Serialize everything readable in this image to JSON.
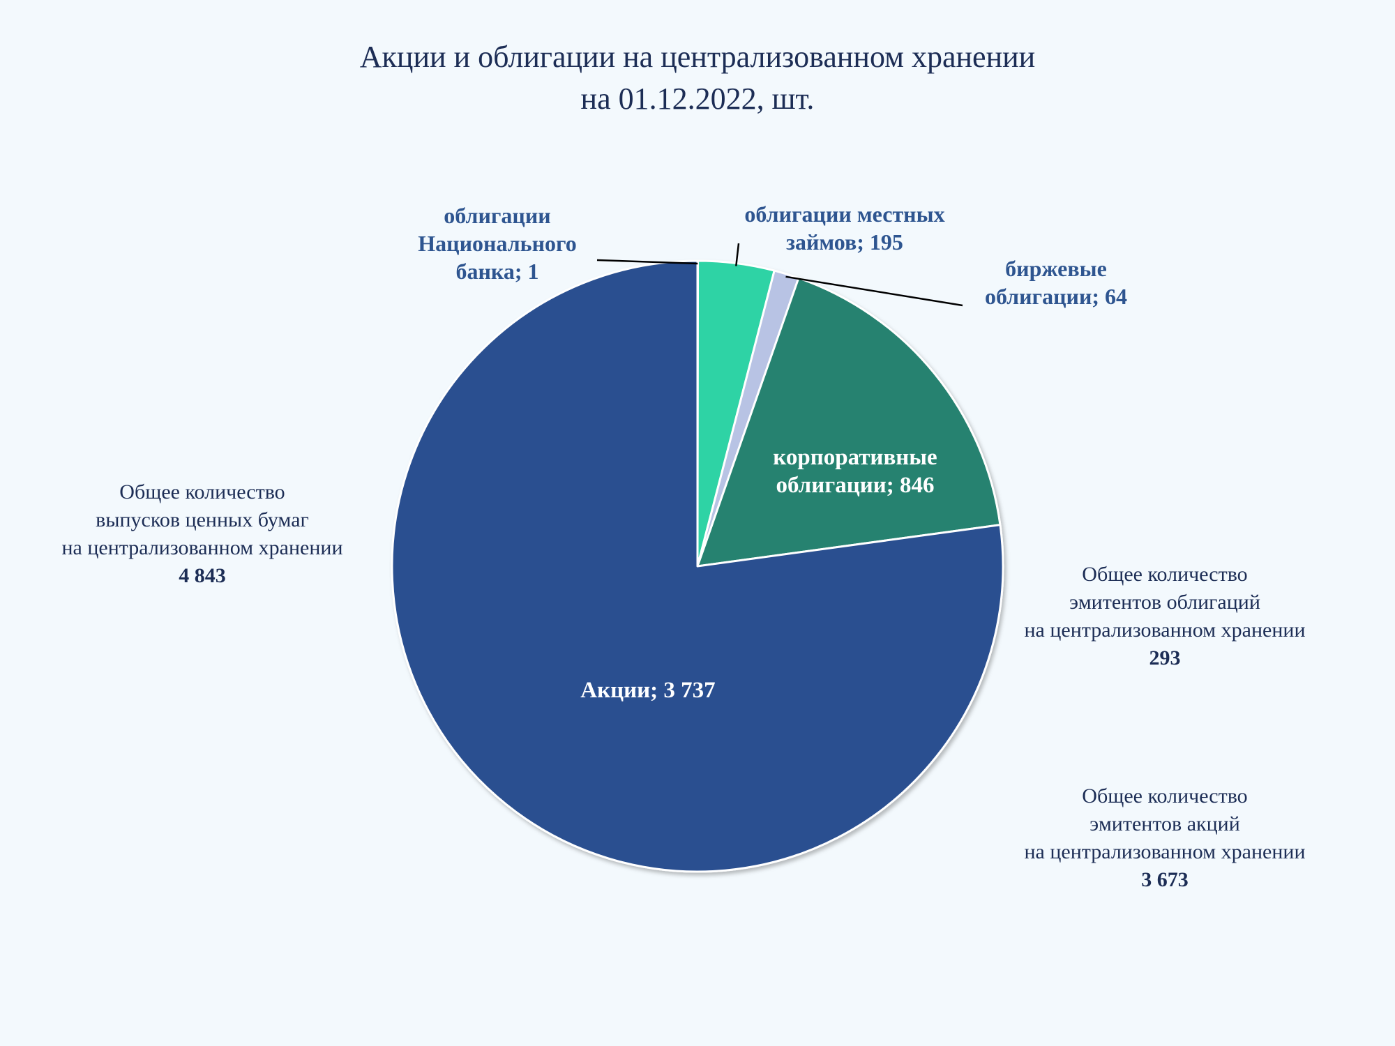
{
  "chart_data": {
    "type": "pie",
    "title": "Акции и облигации на централизованном хранении",
    "subtitle": "на 01.12.2022, шт.",
    "start_angle_deg": 0,
    "direction": "clockwise",
    "slices": [
      {
        "label_lines": [
          "облигации",
          "Национального",
          "банка; 1"
        ],
        "value": 1,
        "color": "#2a5090",
        "label_color": "#2e5590",
        "label_position": "outside-top-left"
      },
      {
        "label_lines": [
          "облигации местных",
          "займов; 195"
        ],
        "value": 195,
        "color": "#2dd3a5",
        "label_color": "#2e5590",
        "label_position": "outside-top"
      },
      {
        "label_lines": [
          "биржевые",
          "облигации; 64"
        ],
        "value": 64,
        "color": "#b8c3e4",
        "label_color": "#2e5590",
        "label_position": "outside-top-right"
      },
      {
        "label_lines": [
          "корпоративные",
          "облигации; 846"
        ],
        "value": 846,
        "color": "#258270",
        "label_color": "#ffffff",
        "label_position": "inside"
      },
      {
        "label_lines": [
          "Акции; 3 737"
        ],
        "value": 3737,
        "color": "#2a5090",
        "label_color": "#ffffff",
        "label_position": "inside"
      }
    ]
  },
  "stats": {
    "total_issues": {
      "lines": [
        "Общее количество",
        "выпусков ценных бумаг",
        "на централизованном хранении"
      ],
      "value": "4 843"
    },
    "bond_issuers": {
      "lines": [
        "Общее количество",
        "эмитентов облигаций",
        "на централизованном хранении"
      ],
      "value": "293"
    },
    "share_issuers": {
      "lines": [
        "Общее количество",
        "эмитентов акций",
        "на централизованном хранении"
      ],
      "value": "3 673"
    }
  }
}
